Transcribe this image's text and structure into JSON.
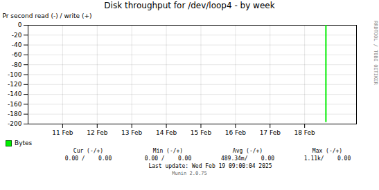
{
  "chart_data": {
    "type": "line",
    "title": "Disk throughput for /dev/loop4 - by week",
    "ylabel": "Pr second read (-) / write (+)",
    "x": [
      1739890000,
      1739890000
    ],
    "series": [
      {
        "name": "Bytes",
        "color": "#00ee00",
        "values": [
          0,
          -195
        ]
      }
    ],
    "xlim": [
      1739145600,
      1739966400
    ],
    "xticks": [
      {
        "value": 1739232000,
        "label": "11 Feb"
      },
      {
        "value": 1739318400,
        "label": "12 Feb"
      },
      {
        "value": 1739404800,
        "label": "13 Feb"
      },
      {
        "value": 1739491200,
        "label": "14 Feb"
      },
      {
        "value": 1739577600,
        "label": "15 Feb"
      },
      {
        "value": 1739664000,
        "label": "16 Feb"
      },
      {
        "value": 1739750400,
        "label": "17 Feb"
      },
      {
        "value": 1739836800,
        "label": "18 Feb"
      }
    ],
    "ylim": [
      -200,
      0
    ],
    "yticks": [
      0,
      -20,
      -40,
      -60,
      -80,
      -100,
      -120,
      -140,
      -160,
      -180,
      -200
    ],
    "grid": true,
    "legend": "bottom",
    "annotations": {
      "column_headers": [
        "Cur (-/+)",
        "Min (-/+)",
        "Avg (-/+)",
        "Max (-/+)"
      ],
      "column_values": [
        "0.00 /    0.00",
        "0.00 /    0.00",
        "489.34m/    0.00",
        "1.11k/    0.00"
      ],
      "last_update": "Last update: Wed Feb 19 09:00:04 2025",
      "version": "Munin 2.0.75",
      "side_label": "RRDTOOL / TOBI OETIKER"
    }
  }
}
